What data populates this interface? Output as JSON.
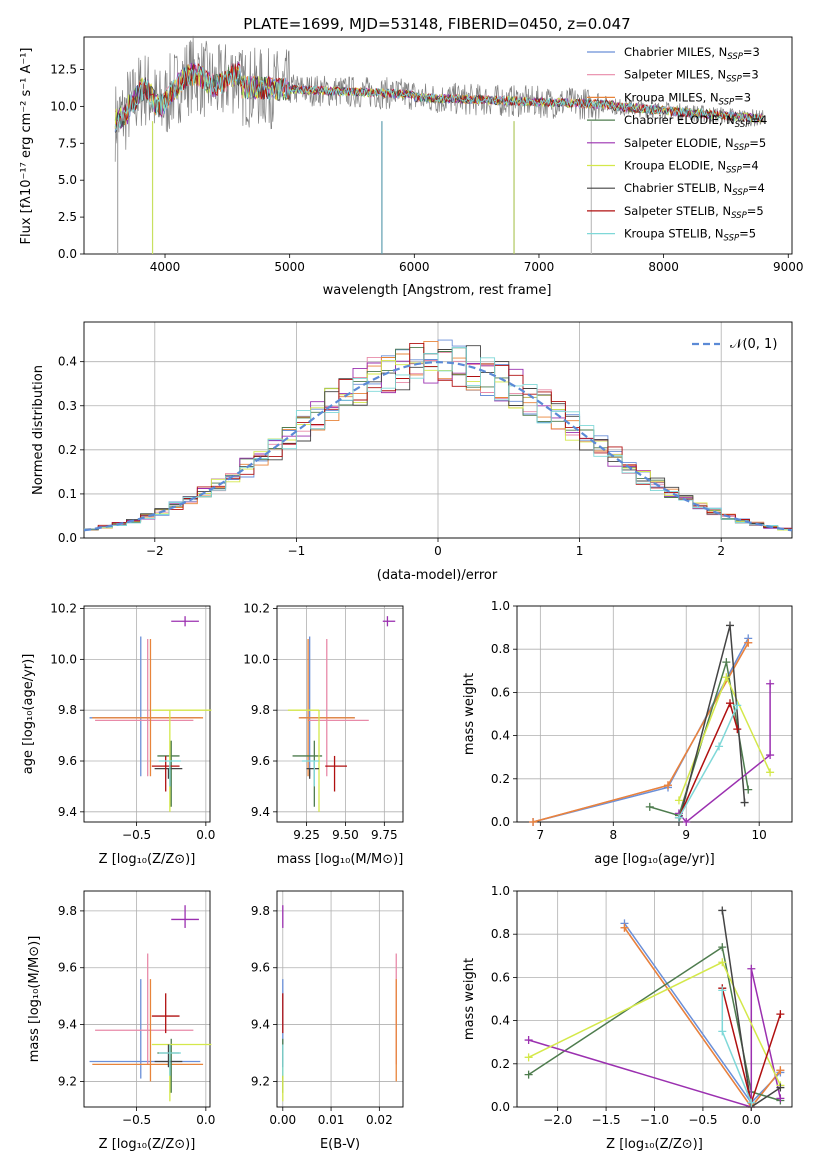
{
  "title": "PLATE=1699, MJD=53148, FIBERID=0450, z=0.047",
  "legend_spectrum": [
    {
      "name": "Chabrier MILES, N",
      "sub": "SSP",
      "val": "=3",
      "color": "#6a8fd8"
    },
    {
      "name": "Salpeter MILES, N",
      "sub": "SSP",
      "val": "=3",
      "color": "#e88aa8"
    },
    {
      "name": "Kroupa MILES, N",
      "sub": "SSP",
      "val": "=3",
      "color": "#e8843a"
    },
    {
      "name": "Chabrier ELODIE, N",
      "sub": "SSP",
      "val": "=4",
      "color": "#4e7c4e"
    },
    {
      "name": "Salpeter ELODIE, N",
      "sub": "SSP",
      "val": "=5",
      "color": "#9b30b0"
    },
    {
      "name": "Kroupa ELODIE, N",
      "sub": "SSP",
      "val": "=4",
      "color": "#d4e84a"
    },
    {
      "name": "Chabrier STELIB, N",
      "sub": "SSP",
      "val": "=4",
      "color": "#444444"
    },
    {
      "name": "Salpeter STELIB, N",
      "sub": "SSP",
      "val": "=5",
      "color": "#b01010"
    },
    {
      "name": "Kroupa STELIB, N",
      "sub": "SSP",
      "val": "=5",
      "color": "#7fd8d8"
    }
  ],
  "legend_normal": "𝒩(0, 1)",
  "chart_data": [
    {
      "id": "spectrum",
      "type": "line",
      "xlabel": "wavelength [Angstrom, rest frame]",
      "ylabel": "Flux [f_λ 10^-17 erg cm^-2 s^-1 A^-1]",
      "xlim": [
        3350,
        9030
      ],
      "ylim": [
        0,
        14.7
      ],
      "xticks": [
        "4000",
        "5000",
        "6000",
        "7000",
        "8000",
        "9000"
      ],
      "yticks": [
        "0.0",
        "2.5",
        "5.0",
        "7.5",
        "10.0",
        "12.5"
      ],
      "data_range": [
        3600,
        8800
      ]
    },
    {
      "id": "residuals",
      "type": "line",
      "xlabel": "(data-model)/error",
      "ylabel": "Normed distribution",
      "xlim": [
        -2.5,
        2.5
      ],
      "ylim": [
        0,
        0.49
      ],
      "xticks": [
        "−2",
        "−1",
        "0",
        "1",
        "2"
      ],
      "yticks": [
        "0.0",
        "0.1",
        "0.2",
        "0.3",
        "0.4"
      ],
      "gaussian": {
        "mu": 0,
        "sigma": 1
      }
    },
    {
      "id": "age-vs-Z",
      "type": "scatter",
      "xlabel": "Z [log10(Z/Z⊙)]",
      "ylabel": "age [log10(age/yr)]",
      "xlim": [
        -0.88,
        0.03
      ],
      "ylim": [
        9.36,
        10.21
      ],
      "xticks": [
        "−0.5",
        "0.0"
      ],
      "yticks": [
        "9.4",
        "9.6",
        "9.8",
        "10.0",
        "10.2"
      ]
    },
    {
      "id": "age-vs-mass",
      "type": "scatter",
      "xlabel": "mass [log10(M/M⊙)]",
      "ylabel": "",
      "xlim": [
        9.06,
        9.87
      ],
      "ylim": [
        9.36,
        10.21
      ],
      "xticks": [
        "9.25",
        "9.50",
        "9.75"
      ],
      "yticks": [
        "9.4",
        "9.6",
        "9.8",
        "10.0",
        "10.2"
      ]
    },
    {
      "id": "weight-vs-age",
      "type": "line",
      "xlabel": "age [log10(age/yr)]",
      "ylabel": "mass weight",
      "xlim": [
        6.68,
        10.45
      ],
      "ylim": [
        0,
        1.0
      ],
      "xticks": [
        "7",
        "8",
        "9",
        "10"
      ],
      "yticks": [
        "0.0",
        "0.2",
        "0.4",
        "0.6",
        "0.8",
        "1.0"
      ]
    },
    {
      "id": "mass-vs-Z",
      "type": "scatter",
      "xlabel": "Z [log10(Z/Z⊙)]",
      "ylabel": "mass [log10(M/M⊙)]",
      "xlim": [
        -0.88,
        0.03
      ],
      "ylim": [
        9.11,
        9.87
      ],
      "xticks": [
        "−0.5",
        "0.0"
      ],
      "yticks": [
        "9.2",
        "9.4",
        "9.6",
        "9.8"
      ]
    },
    {
      "id": "mass-vs-ebv",
      "type": "scatter",
      "xlabel": "E(B-V)",
      "ylabel": "",
      "xlim": [
        -0.0012,
        0.0249
      ],
      "ylim": [
        9.11,
        9.87
      ],
      "xticks": [
        "0.00",
        "0.01",
        "0.02"
      ],
      "yticks": [
        "9.2",
        "9.4",
        "9.6",
        "9.8"
      ]
    },
    {
      "id": "weight-vs-Z",
      "type": "line",
      "xlabel": "Z [log10(Z/Z⊙)]",
      "ylabel": "mass weight",
      "xlim": [
        -2.42,
        0.42
      ],
      "ylim": [
        0,
        1.0
      ],
      "xticks": [
        "−2.0",
        "−1.5",
        "−1.0",
        "−0.5",
        "0.0"
      ],
      "yticks": [
        "0.0",
        "0.2",
        "0.4",
        "0.6",
        "0.8",
        "1.0"
      ]
    }
  ],
  "fits": [
    {
      "color": "#6a8fd8",
      "Z": -0.47,
      "zlo": 0.37,
      "zhi": 0.43,
      "age": 9.77,
      "alo": 0.23,
      "ahi": 0.32,
      "mass": 9.27,
      "mlo": 0.06,
      "mhi": 0.29,
      "ebv": 0.0,
      "weights": [
        [
          6.9,
          0.0
        ],
        [
          8.75,
          0.16
        ],
        [
          9.85,
          0.85
        ]
      ],
      "wz": [
        [
          -1.31,
          0.85
        ],
        [
          0.0,
          0.02
        ],
        [
          0.3,
          0.16
        ]
      ]
    },
    {
      "color": "#e88aa8",
      "Z": -0.42,
      "zlo": 0.38,
      "zhi": 0.33,
      "age": 9.76,
      "alo": 0.22,
      "ahi": 0.32,
      "mass": 9.38,
      "mlo": 0.12,
      "mhi": 0.27,
      "ebv": 0.0235,
      "weights": [
        [
          6.9,
          0.0
        ],
        [
          8.75,
          0.17
        ],
        [
          9.85,
          0.83
        ]
      ],
      "wz": [
        [
          -1.31,
          0.83
        ],
        [
          0.0,
          0.0
        ],
        [
          0.3,
          0.17
        ]
      ]
    },
    {
      "color": "#e8843a",
      "Z": -0.4,
      "zlo": 0.42,
      "zhi": 0.38,
      "age": 9.77,
      "alo": 0.23,
      "ahi": 0.31,
      "mass": 9.26,
      "mlo": 0.06,
      "mhi": 0.3,
      "ebv": 0.0235,
      "weights": [
        [
          6.9,
          0.0
        ],
        [
          8.75,
          0.17
        ],
        [
          9.85,
          0.83
        ]
      ],
      "wz": [
        [
          -1.31,
          0.83
        ],
        [
          0.0,
          0.0
        ],
        [
          0.3,
          0.17
        ]
      ]
    },
    {
      "color": "#4e7c4e",
      "Z": -0.25,
      "zlo": 0.1,
      "zhi": 0.06,
      "age": 9.62,
      "alo": 0.2,
      "ahi": 0.06,
      "mass": 9.3,
      "mlo": 0.14,
      "mhi": 0.05,
      "ebv": 0.0,
      "weights": [
        [
          8.5,
          0.07
        ],
        [
          8.9,
          0.03
        ],
        [
          9.55,
          0.74
        ],
        [
          9.85,
          0.15
        ]
      ],
      "wz": [
        [
          -2.3,
          0.15
        ],
        [
          -0.3,
          0.74
        ],
        [
          0.0,
          0.07
        ],
        [
          0.3,
          0.03
        ]
      ]
    },
    {
      "color": "#9b30b0",
      "Z": -0.15,
      "zlo": 0.1,
      "zhi": 0.1,
      "age": 10.15,
      "alo": 0.02,
      "ahi": 0.02,
      "mass": 9.77,
      "mlo": 0.03,
      "mhi": 0.05,
      "ebv": 0.0,
      "weights": [
        [
          8.9,
          0.04
        ],
        [
          9.0,
          0.0
        ],
        [
          10.15,
          0.31
        ],
        [
          10.15,
          0.64
        ]
      ],
      "wz": [
        [
          -2.3,
          0.31
        ],
        [
          0.0,
          0.0
        ],
        [
          0.0,
          0.64
        ],
        [
          0.3,
          0.04
        ]
      ]
    },
    {
      "color": "#d4e84a",
      "Z": -0.26,
      "zlo": 0.13,
      "zhi": 0.3,
      "age": 9.8,
      "alo": 0.4,
      "ahi": 0.0,
      "mass": 9.33,
      "mlo": 0.2,
      "mhi": 0.0,
      "ebv": 0.0,
      "weights": [
        [
          8.9,
          0.1
        ],
        [
          9.55,
          0.67
        ],
        [
          10.15,
          0.23
        ]
      ],
      "wz": [
        [
          -2.3,
          0.23
        ],
        [
          -0.3,
          0.67
        ],
        [
          0.3,
          0.1
        ]
      ]
    },
    {
      "color": "#444444",
      "Z": -0.27,
      "zlo": 0.1,
      "zhi": 0.1,
      "age": 9.57,
      "alo": 0.04,
      "ahi": 0.0,
      "mass": 9.27,
      "mlo": 0.02,
      "mhi": 0.06,
      "ebv": 0.0,
      "weights": [
        [
          8.9,
          0.0
        ],
        [
          9.6,
          0.91
        ],
        [
          9.8,
          0.09
        ]
      ],
      "wz": [
        [
          -0.3,
          0.91
        ],
        [
          0.0,
          0.0
        ],
        [
          0.3,
          0.09
        ]
      ]
    },
    {
      "color": "#b01010",
      "Z": -0.29,
      "zlo": 0.1,
      "zhi": 0.1,
      "age": 9.58,
      "alo": 0.1,
      "ahi": 0.04,
      "mass": 9.43,
      "mlo": 0.06,
      "mhi": 0.08,
      "ebv": 0.0,
      "weights": [
        [
          8.9,
          0.02
        ],
        [
          9.6,
          0.55
        ],
        [
          9.7,
          0.43
        ]
      ],
      "wz": [
        [
          -0.3,
          0.55
        ],
        [
          0.0,
          0.02
        ],
        [
          0.3,
          0.43
        ]
      ]
    },
    {
      "color": "#7fd8d8",
      "Z": -0.26,
      "zlo": 0.08,
      "zhi": 0.08,
      "age": 9.6,
      "alo": 0.1,
      "ahi": 0.0,
      "mass": 9.3,
      "mlo": 0.08,
      "mhi": 0.03,
      "ebv": 0.0,
      "weights": [
        [
          8.9,
          0.02
        ],
        [
          9.45,
          0.35
        ],
        [
          9.7,
          0.54
        ]
      ],
      "wz": [
        [
          -0.3,
          0.54
        ],
        [
          -0.3,
          0.35
        ],
        [
          0.0,
          0.02
        ]
      ]
    }
  ]
}
